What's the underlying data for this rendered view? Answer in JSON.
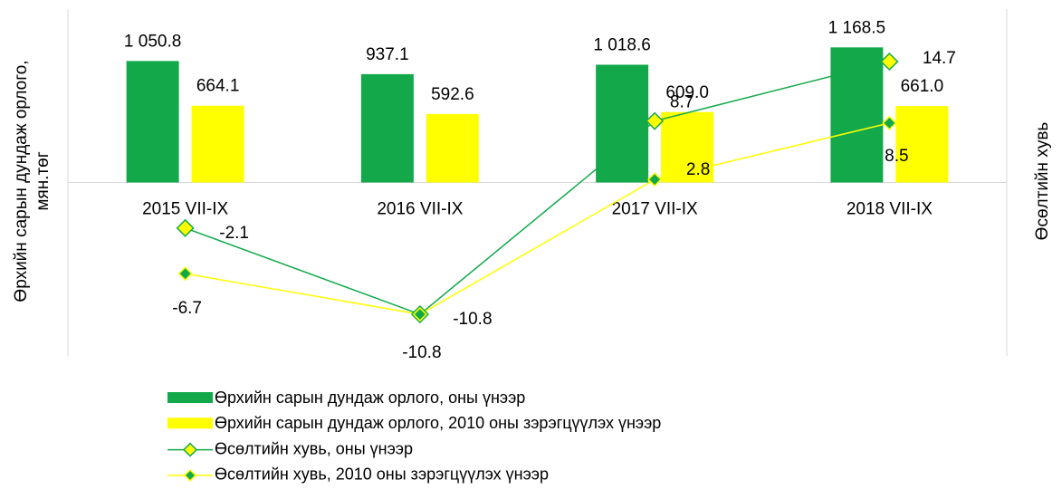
{
  "chart_data": {
    "type": "bar_line",
    "categories": [
      "2015 VII-IX",
      "2016 VII-IX",
      "2017 VII-IX",
      "2018 VII-IX"
    ],
    "y_label": [
      "Өрхийн сарын дундаж орлого,",
      "мян.төг"
    ],
    "y2_label": "Өсөлтийн хувь",
    "ylim": [
      -1500,
      1500
    ],
    "y2lim": [
      -15,
      20
    ],
    "legend": "bottom",
    "series": [
      {
        "name": "Өрхийн сарын дундаж орлого,  оны үнээр",
        "type": "bar",
        "color": "#13a94b",
        "values": [
          1050.8,
          937.1,
          1018.6,
          1168.5
        ],
        "value_labels": [
          "1 050.8",
          "937.1",
          "1 018.6",
          "1 168.5"
        ]
      },
      {
        "name": "Өрхийн сарын дундаж орлого,  2010 оны зэрэгцүүлэх үнээр",
        "type": "bar",
        "color": "#ffff00",
        "values": [
          664.1,
          592.6,
          609.0,
          661.0
        ],
        "value_labels": [
          "664.1",
          "592.6",
          "609.0",
          "661.0"
        ]
      },
      {
        "name": "Өсөлтийн хувь, оны үнээр",
        "type": "line",
        "axis": "y2",
        "color": "#13a94b",
        "marker_color": "#ffff00",
        "values": [
          -2.1,
          -10.8,
          8.7,
          14.7
        ]
      },
      {
        "name": "Өсөлтийн хувь, 2010 оны зэрэгцүүлэх үнээр",
        "type": "line",
        "axis": "y2",
        "color": "#ffff00",
        "marker_color": "#13a94b",
        "values": [
          -6.7,
          -10.8,
          2.8,
          8.5
        ]
      }
    ]
  }
}
